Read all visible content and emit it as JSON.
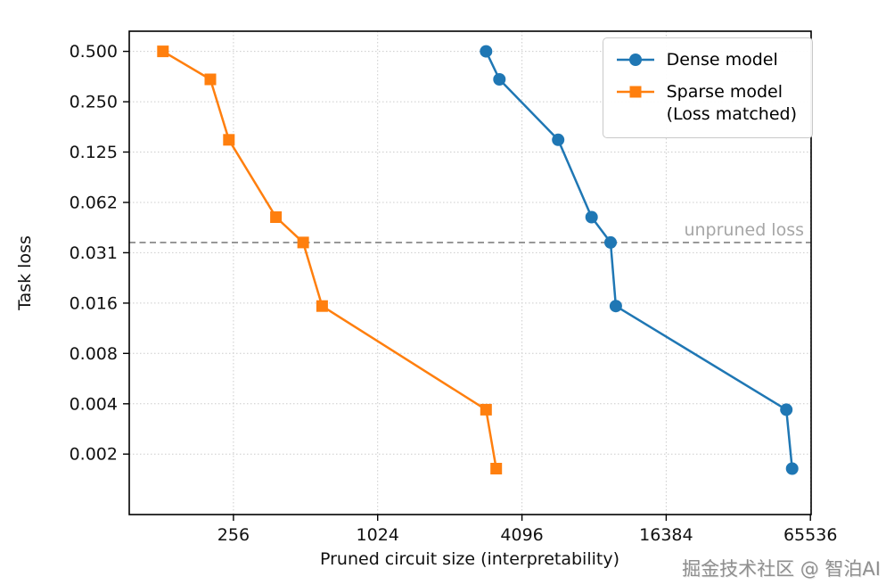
{
  "watermark": "掘金技术社区 @ 智泊AI",
  "chart_data": {
    "type": "line",
    "title": "",
    "xlabel": "Pruned circuit size (interpretability)",
    "ylabel": "Task loss",
    "x_scale": "log",
    "y_scale": "log",
    "xlim": [
      94,
      66000
    ],
    "ylim": [
      0.00085,
      0.66
    ],
    "grid": true,
    "grid_color": "#cccccc",
    "background": "#ffffff",
    "x_ticks": [
      {
        "value": 256,
        "label": "256"
      },
      {
        "value": 1024,
        "label": "1024"
      },
      {
        "value": 4096,
        "label": "4096"
      },
      {
        "value": 16384,
        "label": "16384"
      },
      {
        "value": 65536,
        "label": "65536"
      }
    ],
    "y_ticks": [
      {
        "value": 0.5,
        "label": "0.500"
      },
      {
        "value": 0.25,
        "label": "0.250"
      },
      {
        "value": 0.125,
        "label": "0.125"
      },
      {
        "value": 0.0625,
        "label": "0.062"
      },
      {
        "value": 0.03125,
        "label": "0.031"
      },
      {
        "value": 0.015625,
        "label": "0.016"
      },
      {
        "value": 0.0078125,
        "label": "0.008"
      },
      {
        "value": 0.00390625,
        "label": "0.004"
      },
      {
        "value": 0.001953125,
        "label": "0.002"
      }
    ],
    "annotation": {
      "text": "unpruned loss",
      "y": 0.036,
      "color": "#a6a6a6",
      "line_color": "#808080",
      "line_style": "dashed"
    },
    "legend": {
      "position": "top-right",
      "entries": [
        {
          "label": "Dense model"
        },
        {
          "label": "Sparse model",
          "label2": "(Loss matched)"
        }
      ]
    },
    "series": [
      {
        "name": "Dense model",
        "color": "#1f77b4",
        "marker": "circle",
        "points": [
          [
            2900,
            0.5
          ],
          [
            3300,
            0.34
          ],
          [
            5800,
            0.148
          ],
          [
            8000,
            0.051
          ],
          [
            9600,
            0.036
          ],
          [
            10100,
            0.015
          ],
          [
            52000,
            0.0036
          ],
          [
            55000,
            0.0016
          ]
        ]
      },
      {
        "name": "Sparse model (Loss matched)",
        "color": "#ff7f0e",
        "marker": "square",
        "points": [
          [
            130,
            0.5
          ],
          [
            205,
            0.34
          ],
          [
            245,
            0.148
          ],
          [
            385,
            0.051
          ],
          [
            500,
            0.036
          ],
          [
            600,
            0.015
          ],
          [
            2900,
            0.0036
          ],
          [
            3200,
            0.0016
          ]
        ]
      }
    ]
  }
}
